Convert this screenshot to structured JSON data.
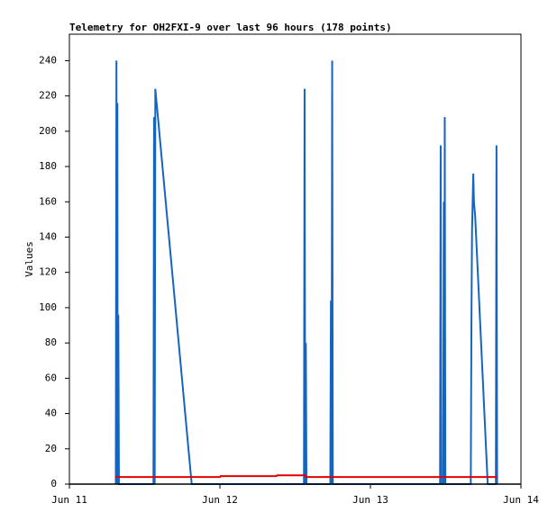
{
  "chart_data": {
    "type": "line",
    "title": "Telemetry for OH2FXI-9 over last 96 hours (178 points)",
    "y_label": "Values",
    "xlim": [
      0,
      72
    ],
    "xticks": [
      {
        "value": 0,
        "label": "Jun 11"
      },
      {
        "value": 24,
        "label": "Jun 12"
      },
      {
        "value": 48,
        "label": "Jun 13"
      },
      {
        "value": 72,
        "label": "Jun 14"
      }
    ],
    "ylim": [
      0,
      255
    ],
    "yticks": [
      0,
      20,
      40,
      60,
      80,
      100,
      120,
      140,
      160,
      180,
      200,
      220,
      240
    ],
    "grid": false,
    "series": [
      {
        "color": "#1565c0",
        "x": [
          7.4,
          7.5,
          7.6,
          7.65,
          7.7,
          7.8,
          7.9,
          13.4,
          13.5,
          13.6,
          13.7,
          19.5,
          37.4,
          37.5,
          37.6,
          37.7,
          37.8,
          41.6,
          41.7,
          41.8,
          41.9,
          42.0,
          59.1,
          59.2,
          59.3,
          59.6,
          59.7,
          59.8,
          59.85,
          59.95,
          64.0,
          64.1,
          64.2,
          64.4,
          64.5,
          64.7,
          66.7,
          68.0,
          68.1,
          68.2
        ],
        "values": [
          0,
          240,
          0,
          216,
          0,
          96,
          0,
          0,
          208,
          0,
          224,
          0,
          0,
          224,
          0,
          80,
          0,
          0,
          104,
          0,
          240,
          0,
          0,
          192,
          0,
          0,
          160,
          0,
          208,
          0,
          0,
          88,
          144,
          176,
          160,
          152,
          0,
          0,
          192,
          0
        ]
      },
      {
        "color": "#e00000",
        "x": [
          7.3,
          24,
          24.1,
          33,
          33.1,
          37.6,
          37.7,
          68.2
        ],
        "values": [
          4,
          4,
          4.5,
          4.5,
          5,
          5,
          4,
          4
        ]
      }
    ]
  }
}
